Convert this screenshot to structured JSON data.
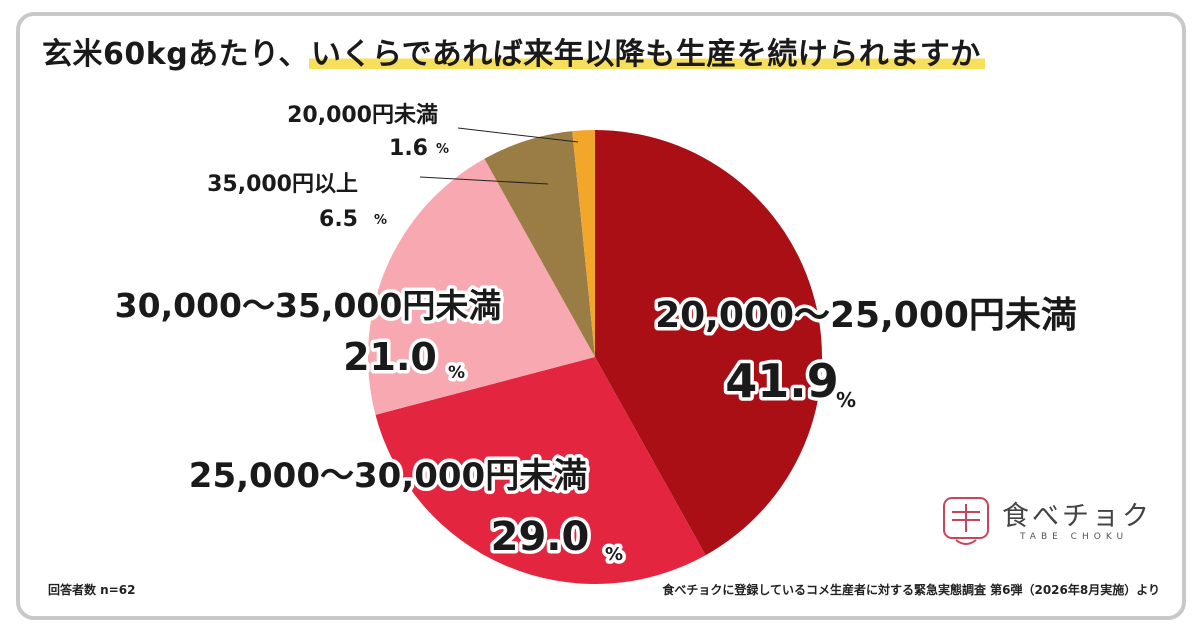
{
  "header": {
    "title_plain": "玄米60kgあたり、",
    "title_highlight": "いくらであれば来年以降も生産を続けられますか"
  },
  "footer": {
    "sample": "回答者数 n=62",
    "source": "食べチョクに登録しているコメ生産者に対する緊急実態調査 第6弾（2026年8月実施）より"
  },
  "logo": {
    "text": "食べチョク",
    "sub": "TABE CHOKU",
    "icon": "rice-bowl-logo-icon"
  },
  "chart_data": {
    "type": "pie",
    "title": "玄米60kgあたり、いくらであれば来年以降も生産を続けられますか",
    "start": "12 o'clock, clockwise",
    "unit": "%",
    "slices": [
      {
        "label": "20,000～25,000円未満",
        "value": 41.9,
        "value_text": "41.9",
        "color": "#a90f15"
      },
      {
        "label": "25,000～30,000円未満",
        "value": 29.0,
        "value_text": "29.0",
        "color": "#e4253f"
      },
      {
        "label": "30,000～35,000円未満",
        "value": 21.0,
        "value_text": "21.0",
        "color": "#f8a8b0"
      },
      {
        "label": "35,000円以上",
        "value": 6.5,
        "value_text": "6.5",
        "color": "#9a7d45"
      },
      {
        "label": "20,000円未満",
        "value": 1.6,
        "value_text": "1.6",
        "color": "#f2a72b"
      }
    ]
  }
}
